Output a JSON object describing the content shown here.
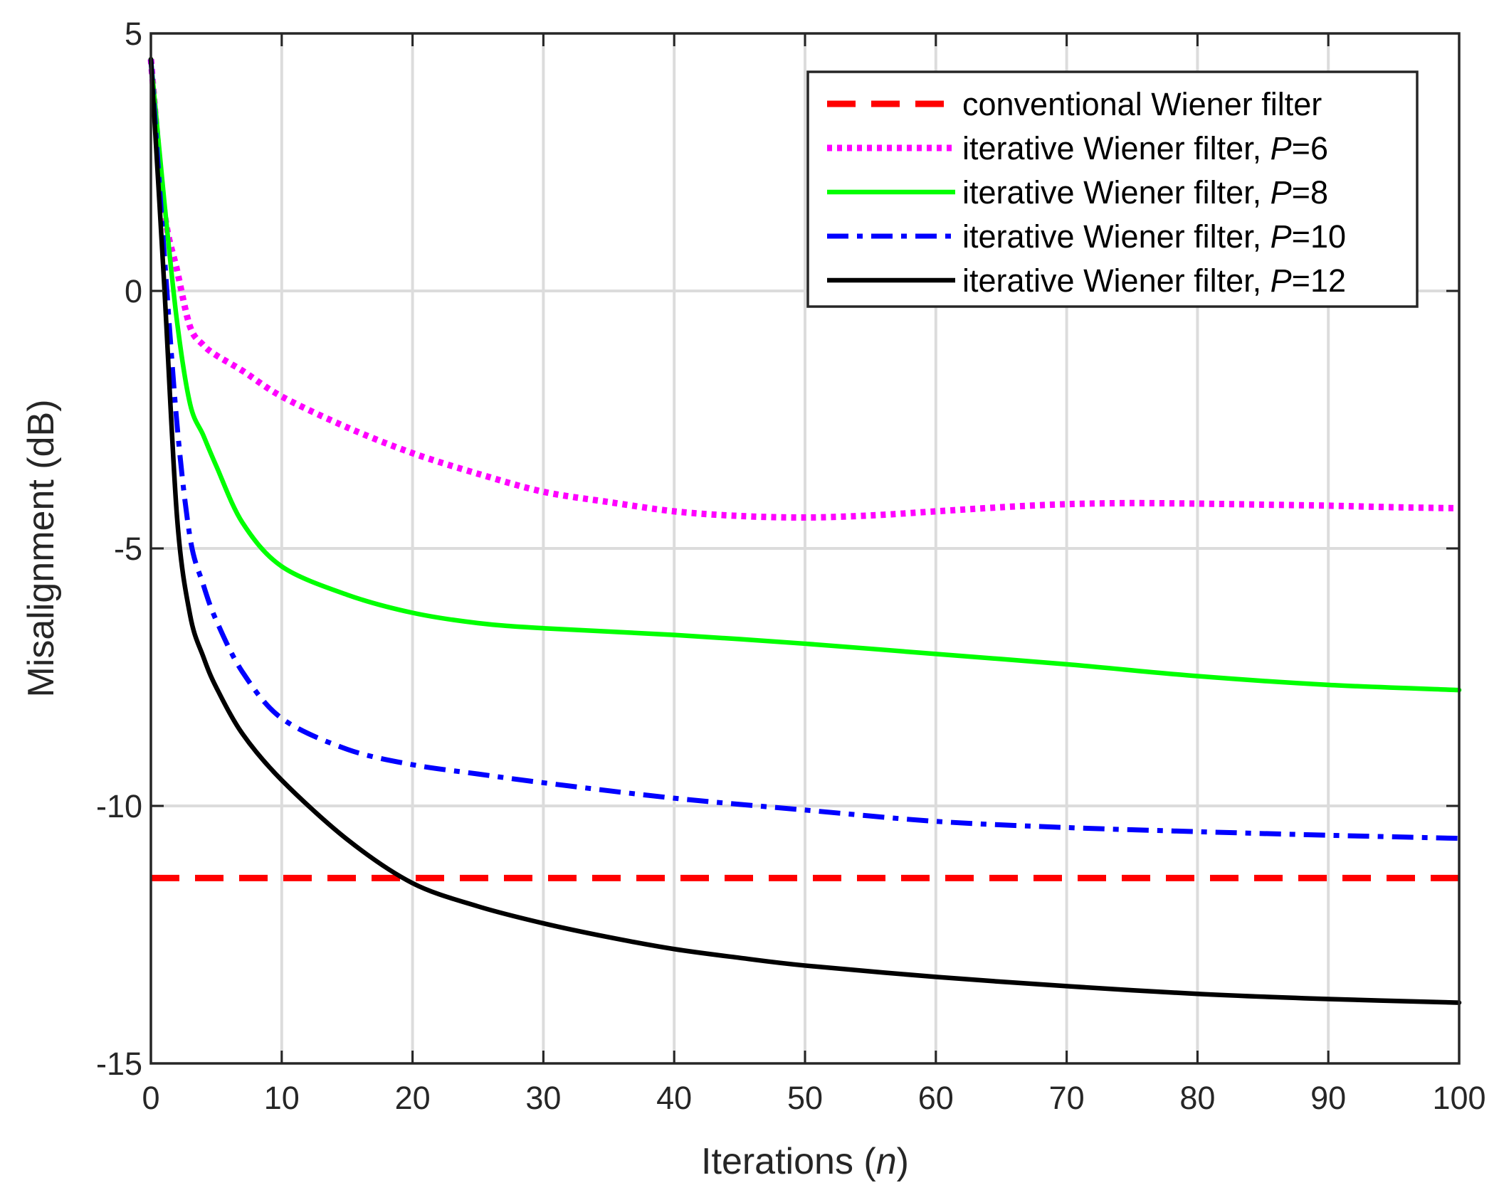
{
  "chart_data": {
    "type": "line",
    "title": "",
    "xlabel": {
      "prefix": "Iterations (",
      "variable": "n",
      "suffix": ")"
    },
    "ylabel": "Misalignment (dB)",
    "xlim": [
      0,
      100
    ],
    "ylim": [
      -15,
      5
    ],
    "xticks": [
      "0",
      "10",
      "20",
      "30",
      "40",
      "50",
      "60",
      "70",
      "80",
      "90",
      "100"
    ],
    "yticks": [
      "-15",
      "-10",
      "-5",
      "0",
      "5"
    ],
    "grid": true,
    "legend_position": "top-right",
    "series": [
      {
        "name": "conventional Wiener filter",
        "label_prefix": "conventional Wiener filter",
        "param_symbol": "",
        "param_value": "",
        "color": "#ff0000",
        "style": "dashed",
        "x": [
          0,
          100
        ],
        "values": [
          -11.4,
          -11.4
        ]
      },
      {
        "name": "iterative Wiener filter, P=6",
        "label_prefix": "iterative Wiener filter, ",
        "param_symbol": "P",
        "param_value": "=6",
        "color": "#ff00ff",
        "style": "dotted",
        "x": [
          0,
          1,
          2,
          3,
          4,
          5,
          7,
          10,
          15,
          20,
          25,
          30,
          35,
          40,
          45,
          50,
          55,
          60,
          65,
          70,
          75,
          80,
          85,
          90,
          95,
          100
        ],
        "values": [
          4.5,
          1.6,
          0.4,
          -0.7,
          -1.05,
          -1.25,
          -1.55,
          -2.05,
          -2.65,
          -3.15,
          -3.55,
          -3.9,
          -4.1,
          -4.28,
          -4.37,
          -4.4,
          -4.36,
          -4.28,
          -4.2,
          -4.14,
          -4.12,
          -4.13,
          -4.15,
          -4.17,
          -4.2,
          -4.22
        ]
      },
      {
        "name": "iterative Wiener filter, P=8",
        "label_prefix": "iterative Wiener filter, ",
        "param_symbol": "P",
        "param_value": "=8",
        "color": "#00ff00",
        "style": "solid",
        "x": [
          0,
          1,
          2,
          3,
          4,
          5,
          7,
          10,
          15,
          20,
          25,
          30,
          40,
          50,
          60,
          70,
          80,
          90,
          100
        ],
        "values": [
          4.5,
          1.8,
          -0.6,
          -2.2,
          -2.8,
          -3.4,
          -4.5,
          -5.35,
          -5.9,
          -6.25,
          -6.45,
          -6.55,
          -6.68,
          -6.85,
          -7.05,
          -7.25,
          -7.48,
          -7.65,
          -7.75
        ]
      },
      {
        "name": "iterative Wiener filter, P=10",
        "label_prefix": "iterative Wiener filter, ",
        "param_symbol": "P",
        "param_value": "=10",
        "color": "#0000ff",
        "style": "dashdot",
        "x": [
          0,
          1,
          2,
          3,
          4,
          5,
          7,
          10,
          15,
          20,
          25,
          30,
          40,
          50,
          60,
          70,
          80,
          90,
          100
        ],
        "values": [
          4.5,
          0.8,
          -2.6,
          -4.8,
          -5.7,
          -6.4,
          -7.4,
          -8.3,
          -8.9,
          -9.2,
          -9.38,
          -9.55,
          -9.85,
          -10.08,
          -10.3,
          -10.42,
          -10.5,
          -10.57,
          -10.63
        ]
      },
      {
        "name": "iterative Wiener filter, P=12",
        "label_prefix": "iterative Wiener filter, ",
        "param_symbol": "P",
        "param_value": "=12",
        "color": "#000000",
        "style": "solid",
        "x": [
          0,
          1,
          2,
          3,
          4,
          5,
          7,
          10,
          15,
          20,
          25,
          30,
          35,
          40,
          45,
          50,
          60,
          70,
          80,
          90,
          100
        ],
        "values": [
          4.5,
          0.2,
          -4.4,
          -6.3,
          -7.1,
          -7.7,
          -8.6,
          -9.5,
          -10.65,
          -11.5,
          -11.95,
          -12.28,
          -12.55,
          -12.78,
          -12.95,
          -13.1,
          -13.32,
          -13.5,
          -13.65,
          -13.75,
          -13.82
        ]
      }
    ]
  }
}
